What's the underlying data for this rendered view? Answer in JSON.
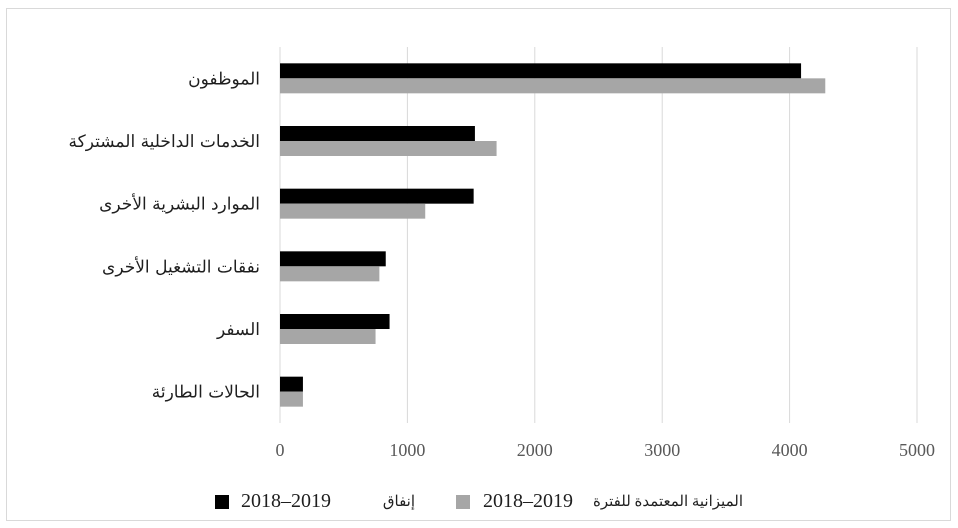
{
  "chart_data": {
    "type": "bar",
    "orientation": "horizontal",
    "categories": [
      "الموظفون",
      "الخدمات الداخلية المشتركة",
      "الموارد البشرية الأخرى",
      "نفقات التشغيل الأخرى",
      "السفر",
      "الحالات الطارئة"
    ],
    "series": [
      {
        "name": "إنفاق 2018–2019",
        "color": "#000000",
        "values": [
          4090,
          1530,
          1520,
          830,
          860,
          180
        ]
      },
      {
        "name": "الميزانية المعتمدة للفترة 2018–2019",
        "color": "#a6a6a6",
        "values": [
          4280,
          1700,
          1140,
          780,
          750,
          180
        ]
      }
    ],
    "xlim": [
      0,
      5000
    ],
    "x_ticks": [
      "0",
      "1000",
      "2000",
      "3000",
      "4000",
      "5000"
    ],
    "grid": "vertical",
    "legend_position": "bottom",
    "legend": [
      {
        "prefix": "إنفاق",
        "year": "2018–2019",
        "color": "#000000"
      },
      {
        "prefix": "الميزانية المعتمدة للفترة",
        "year": "2018–2019",
        "color": "#a6a6a6"
      }
    ]
  }
}
